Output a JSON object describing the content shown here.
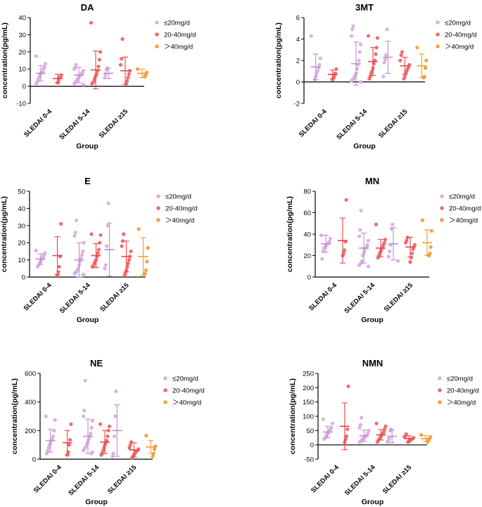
{
  "legend": {
    "low": "≤20mg/d",
    "mid": "20-40mg/d",
    "high": "＞40mg/d"
  },
  "colors": {
    "low": "#d9b2e0",
    "mid": "#f26b6b",
    "high": "#f4a13c",
    "low_line": "#c18cd0",
    "mid_line": "#e8454a",
    "high_line": "#f29a2e"
  },
  "chart_data": [
    {
      "type": "scatter",
      "title": "DA",
      "ylabel": "concentration(pg/mL)",
      "xlabel": "Group",
      "categories": [
        "SLEDAI 0-4",
        "SLEDAI 5-14",
        "SLEDAI ≥15"
      ],
      "ylim": [
        -10,
        40
      ],
      "yticks": [
        -10,
        0,
        10,
        20,
        30,
        40
      ],
      "groups": [
        [
          {
            "series": "low",
            "mean": 7.5,
            "sd": 4.5,
            "points": [
              17.5,
              13,
              11,
              10,
              8.5,
              8,
              7.5,
              6.5,
              5,
              4,
              2.5,
              1.5
            ]
          },
          {
            "series": "mid",
            "mean": 4.5,
            "sd": 2.5,
            "points": [
              6.5,
              5.5,
              5,
              3.5,
              2
            ]
          }
        ],
        [
          {
            "series": "low",
            "mean": 6.5,
            "sd": 4.5,
            "points": [
              12.5,
              11,
              10,
              9,
              8,
              7.5,
              6.5,
              6,
              5,
              4.5,
              3.5,
              3,
              2,
              1.5,
              1
            ]
          },
          {
            "series": "mid",
            "mean": 9.5,
            "sd": 11,
            "points": [
              37,
              20,
              15.5,
              11.5,
              9,
              7,
              6,
              4.5,
              3,
              2,
              1.5
            ]
          }
        ],
        [
          {
            "series": "low",
            "mean": 7.5,
            "sd": 3,
            "points": [
              10.5,
              9.5,
              7,
              5
            ]
          },
          {
            "series": "mid",
            "mean": 9,
            "sd": 8,
            "points": [
              27.5,
              16,
              12.5,
              9,
              7,
              5,
              3,
              1.5
            ]
          },
          {
            "series": "high",
            "mean": 7.5,
            "sd": 2.5,
            "points": [
              10,
              8,
              6.5,
              5.5
            ]
          }
        ]
      ]
    },
    {
      "type": "scatter",
      "title": "3MT",
      "ylabel": "concentration(pg/mL)",
      "xlabel": "Group",
      "categories": [
        "SLEDAI 0-4",
        "SLEDAI 5-14",
        "SLEDAI ≥15"
      ],
      "ylim": [
        -2,
        6
      ],
      "yticks": [
        -2,
        0,
        2,
        4,
        6
      ],
      "groups": [
        [
          {
            "series": "low",
            "mean": 1.4,
            "sd": 1.2,
            "points": [
              4.3,
              2.2,
              1.6,
              1.3,
              1.0,
              0.8,
              0.5,
              0.2
            ]
          },
          {
            "series": "mid",
            "mean": 0.7,
            "sd": 0.4,
            "points": [
              1.2,
              0.8,
              0.6,
              0.4,
              0.2
            ]
          }
        ],
        [
          {
            "series": "low",
            "mean": 1.7,
            "sd": 2.0,
            "points": [
              5.2,
              4.9,
              4.3,
              3.5,
              2.8,
              2.0,
              1.6,
              1.2,
              0.8,
              0.6,
              0.4,
              0.3,
              0.2,
              0.1,
              0.0
            ]
          },
          {
            "series": "mid",
            "mean": 1.9,
            "sd": 1.3,
            "points": [
              4.3,
              4.1,
              3.2,
              2.6,
              2.0,
              1.7,
              1.3,
              1.0,
              0.8,
              0.5,
              0.3
            ]
          }
        ],
        [
          {
            "series": "low",
            "mean": 2.3,
            "sd": 1.5,
            "points": [
              4.9,
              2.5,
              2.1,
              1.8,
              0.5
            ]
          },
          {
            "series": "mid",
            "mean": 1.5,
            "sd": 0.8,
            "points": [
              2.8,
              2.5,
              2.0,
              1.6,
              1.4,
              1.2,
              1.0,
              0.8,
              0.5,
              0.3
            ]
          },
          {
            "series": "high",
            "mean": 1.5,
            "sd": 1.1,
            "points": [
              3.2,
              2.0,
              1.3,
              0.5,
              0.4
            ]
          }
        ]
      ]
    },
    {
      "type": "scatter",
      "title": "E",
      "ylabel": "concentration(pg/mL)",
      "xlabel": "Group",
      "categories": [
        "SLEDAI 0-4",
        "SLEDAI 5-14",
        "SLEDAI ≥15"
      ],
      "ylim": [
        0,
        50
      ],
      "yticks": [
        0,
        10,
        20,
        30,
        40,
        50
      ],
      "groups": [
        [
          {
            "series": "low",
            "mean": 10.5,
            "sd": 3,
            "points": [
              15.5,
              14,
              13,
              12,
              11,
              10,
              9,
              8,
              7,
              6
            ]
          },
          {
            "series": "mid",
            "mean": 12.5,
            "sd": 11,
            "points": [
              31,
              12,
              6,
              3,
              1
            ]
          }
        ],
        [
          {
            "series": "low",
            "mean": 10,
            "sd": 10,
            "points": [
              33,
              26,
              24,
              20,
              15,
              13,
              11,
              9,
              7,
              5,
              4,
              3,
              2.5,
              2,
              1.5,
              1
            ]
          },
          {
            "series": "mid",
            "mean": 12.5,
            "sd": 7,
            "points": [
              25,
              24.5,
              20,
              16,
              14,
              12,
              10,
              9,
              8,
              6.5,
              6
            ]
          }
        ],
        [
          {
            "series": "low",
            "mean": 16,
            "sd": 15.5,
            "points": [
              43,
              30,
              18,
              7,
              5
            ]
          },
          {
            "series": "mid",
            "mean": 12,
            "sd": 9,
            "points": [
              25,
              21,
              18,
              15,
              12,
              10,
              8,
              6,
              4,
              2,
              1
            ]
          },
          {
            "series": "high",
            "mean": 12,
            "sd": 11,
            "points": [
              28,
              17,
              9,
              4,
              2
            ]
          }
        ]
      ]
    },
    {
      "type": "scatter",
      "title": "MN",
      "ylabel": "concentration(pg/mL)",
      "xlabel": "Group",
      "categories": [
        "SLEDAI 0-4",
        "SLEDAI 5-14",
        "SLEDAI ≥15"
      ],
      "ylim": [
        0,
        80
      ],
      "yticks": [
        0,
        20,
        40,
        60,
        80
      ],
      "groups": [
        [
          {
            "series": "low",
            "mean": 31,
            "sd": 8,
            "points": [
              39,
              36,
              33,
              32,
              31,
              30,
              29,
              28,
              27,
              24,
              17
            ]
          },
          {
            "series": "mid",
            "mean": 34,
            "sd": 21,
            "points": [
              72,
              33,
              25,
              22,
              20
            ]
          }
        ],
        [
          {
            "series": "low",
            "mean": 27,
            "sd": 14,
            "points": [
              62,
              44,
              38,
              34,
              30,
              28,
              27,
              25,
              22,
              20,
              15,
              13,
              12,
              11,
              10
            ]
          },
          {
            "series": "mid",
            "mean": 27,
            "sd": 8,
            "points": [
              49,
              35,
              32,
              30,
              28,
              26,
              24,
              22,
              20,
              18
            ]
          }
        ],
        [
          {
            "series": "low",
            "mean": 31,
            "sd": 15,
            "points": [
              49,
              45,
              30,
              24,
              19,
              15
            ]
          },
          {
            "series": "mid",
            "mean": 28,
            "sd": 9,
            "points": [
              37,
              34,
              32,
              30,
              28,
              26,
              22,
              18,
              14
            ]
          },
          {
            "series": "high",
            "mean": 32,
            "sd": 12,
            "points": [
              53,
              43,
              28,
              22,
              20
            ]
          }
        ]
      ]
    },
    {
      "type": "scatter",
      "title": "NE",
      "ylabel": "concentration(pg/mL)",
      "xlabel": "Group",
      "categories": [
        "SLEDAI 0-4",
        "SLEDAI 5-14",
        "SLEDAI ≥15"
      ],
      "ylim": [
        0,
        600
      ],
      "yticks": [
        0,
        200,
        400,
        600
      ],
      "groups": [
        [
          {
            "series": "low",
            "mean": 130,
            "sd": 80,
            "points": [
              300,
              275,
              200,
              160,
              140,
              130,
              110,
              100,
              80,
              60,
              40
            ]
          },
          {
            "series": "mid",
            "mean": 115,
            "sd": 85,
            "points": [
              245,
              135,
              100,
              50,
              30
            ]
          }
        ],
        [
          {
            "series": "low",
            "mean": 160,
            "sd": 120,
            "points": [
              550,
              340,
              300,
              270,
              220,
              180,
              160,
              140,
              120,
              110,
              90,
              80,
              70,
              60,
              50,
              40
            ]
          },
          {
            "series": "mid",
            "mean": 120,
            "sd": 80,
            "points": [
              245,
              230,
              200,
              160,
              130,
              115,
              100,
              80,
              60,
              40,
              30
            ]
          }
        ],
        [
          {
            "series": "low",
            "mean": 200,
            "sd": 180,
            "points": [
              475,
              300,
              160,
              40,
              20
            ]
          },
          {
            "series": "mid",
            "mean": 65,
            "sd": 50,
            "points": [
              120,
              100,
              80,
              70,
              60,
              55,
              50,
              40,
              30,
              20,
              10
            ]
          },
          {
            "series": "high",
            "mean": 85,
            "sd": 45,
            "points": [
              165,
              90,
              70,
              40,
              20
            ]
          }
        ]
      ]
    },
    {
      "type": "scatter",
      "title": "NMN",
      "ylabel": "concentration(pg/mL)",
      "xlabel": "Group",
      "categories": [
        "SLEDAI 0-4",
        "SLEDAI 5-14",
        "SLEDAI ≥15"
      ],
      "ylim": [
        -50,
        250
      ],
      "yticks": [
        -50,
        0,
        50,
        100,
        150,
        200,
        250
      ],
      "groups": [
        [
          {
            "series": "low",
            "mean": 45,
            "sd": 20,
            "points": [
              90,
              75,
              60,
              55,
              50,
              45,
              40,
              35,
              30,
              25,
              20
            ]
          },
          {
            "series": "mid",
            "mean": 65,
            "sd": 82,
            "points": [
              205,
              55,
              30,
              20,
              10
            ]
          }
        ],
        [
          {
            "series": "low",
            "mean": 32,
            "sd": 20,
            "points": [
              95,
              70,
              60,
              50,
              40,
              35,
              30,
              28,
              25,
              22,
              20,
              15,
              12,
              10
            ]
          },
          {
            "series": "mid",
            "mean": 35,
            "sd": 18,
            "points": [
              75,
              65,
              55,
              45,
              40,
              35,
              30,
              25,
              20,
              15,
              10
            ]
          }
        ],
        [
          {
            "series": "low",
            "mean": 30,
            "sd": 22,
            "points": [
              55,
              50,
              25,
              15,
              10
            ]
          },
          {
            "series": "mid",
            "mean": 22,
            "sd": 10,
            "points": [
              38,
              30,
              28,
              25,
              22,
              20,
              18,
              15,
              12,
              10
            ]
          },
          {
            "series": "high",
            "mean": 22,
            "sd": 10,
            "points": [
              35,
              28,
              22,
              15,
              10
            ]
          }
        ]
      ]
    }
  ]
}
